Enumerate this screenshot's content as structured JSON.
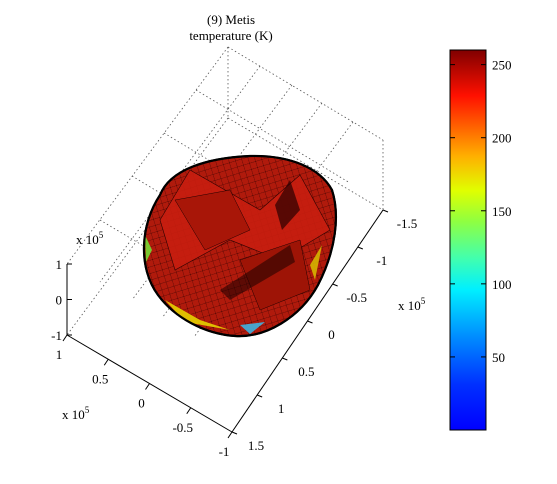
{
  "chart_data": {
    "type": "surface3d",
    "title_line1": "(9) Metis",
    "title_line2": "temperature (K)",
    "x_axis": {
      "multiplier_base": "x 10",
      "multiplier_exp": "5",
      "ticks": [
        "1",
        "0.5",
        "0",
        "-0.5",
        "-1"
      ],
      "values": [
        1,
        0.5,
        0,
        -0.5,
        -1
      ]
    },
    "y_axis": {
      "multiplier_base": "x 10",
      "multiplier_exp": "5",
      "ticks": [
        "-1.5",
        "-1",
        "-0.5",
        "0",
        "0.5",
        "1",
        "1.5"
      ],
      "values": [
        -1.5,
        -1,
        -0.5,
        0,
        0.5,
        1,
        1.5
      ]
    },
    "z_axis": {
      "multiplier_base": "x 10",
      "multiplier_exp": "5",
      "ticks": [
        "1",
        "0",
        "-1"
      ],
      "values": [
        1,
        0,
        -1
      ]
    },
    "colorbar": {
      "colormap": "jet",
      "range": [
        0,
        260
      ],
      "ticks": [
        "250",
        "200",
        "150",
        "100",
        "50"
      ],
      "values": [
        250,
        200,
        150,
        100,
        50
      ]
    },
    "surface_color": "#b01a0c",
    "grid": true
  }
}
